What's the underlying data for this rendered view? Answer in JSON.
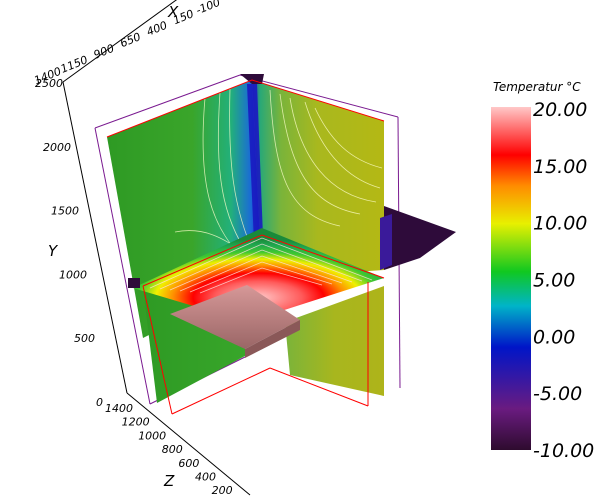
{
  "chart_data": {
    "type": "3d-slice-contour",
    "colorbar": {
      "title": "Temperatur °C",
      "ticks": [
        "20.00",
        "15.00",
        "10.00",
        "5.00",
        "0.00",
        "-5.00",
        "-10.00"
      ],
      "range": [
        -10,
        20
      ],
      "colormap": "rainbow",
      "colors": [
        "#2e0b2e",
        "#6a1b80",
        "#0015c8",
        "#00b4c8",
        "#10c820",
        "#e8f000",
        "#ff8c00",
        "#ff0000",
        "#ffc8c8"
      ]
    },
    "axes": {
      "x": {
        "label": "X",
        "ticks": [
          "1400",
          "1150",
          "900",
          "650",
          "400",
          "150",
          "-100"
        ]
      },
      "y": {
        "label": "Y",
        "ticks": [
          "2500",
          "2000",
          "1500",
          "1000",
          "500",
          "0"
        ],
        "range": [
          0,
          2500
        ]
      },
      "z": {
        "label": "Z",
        "ticks": [
          "1400",
          "1200",
          "1000",
          "800",
          "600",
          "400",
          "200"
        ]
      }
    },
    "slices": [
      {
        "name": "back-left-wall",
        "value_range": [
          2,
          8
        ]
      },
      {
        "name": "back-right-wall",
        "value_range": [
          2,
          9
        ]
      },
      {
        "name": "horizontal-slice",
        "value_range": [
          -10,
          20
        ]
      },
      {
        "name": "heated-block",
        "value": 20
      }
    ]
  }
}
